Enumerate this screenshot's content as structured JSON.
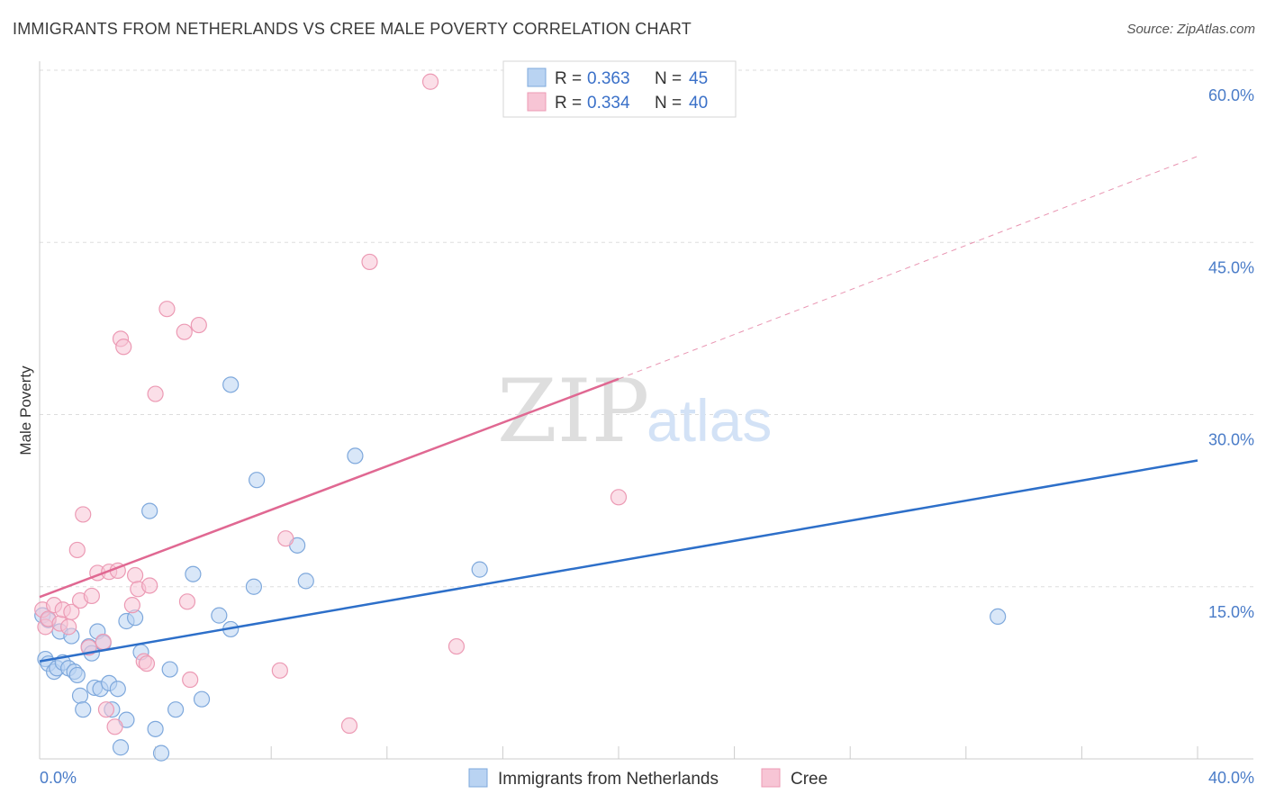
{
  "header": {
    "title": "IMMIGRANTS FROM NETHERLANDS VS CREE MALE POVERTY CORRELATION CHART",
    "source": "Source: ZipAtlas.com"
  },
  "watermark": {
    "zip": "ZIP",
    "atlas": "atlas"
  },
  "colors": {
    "blue_fill": "#b9d3f2",
    "blue_stroke": "#7ea8dc",
    "blue_line": "#2d6fc9",
    "pink_fill": "#f7c5d5",
    "pink_stroke": "#ec9ab4",
    "pink_line": "#e06892",
    "grid": "#dddddd",
    "axis_text": "#4a7cc8"
  },
  "legend": {
    "rows": [
      {
        "r_label": "R = ",
        "r_value": "0.363",
        "n_label": "N = ",
        "n_value": "45",
        "color": "#b9d3f2"
      },
      {
        "r_label": "R = ",
        "r_value": "0.334",
        "n_label": "N = ",
        "n_value": "40",
        "color": "#f7c5d5"
      }
    ]
  },
  "chart_data": {
    "type": "scatter",
    "title": "IMMIGRANTS FROM NETHERLANDS VS CREE MALE POVERTY CORRELATION CHART",
    "xlabel": "",
    "ylabel": "Male Poverty",
    "xlim": [
      0,
      40
    ],
    "ylim": [
      0,
      60
    ],
    "x_ticks": [
      "0.0%",
      "40.0%"
    ],
    "y_ticks": [
      {
        "value": 15,
        "label": "15.0%"
      },
      {
        "value": 30,
        "label": "30.0%"
      },
      {
        "value": 45,
        "label": "45.0%"
      },
      {
        "value": 60,
        "label": "60.0%"
      }
    ],
    "grid": true,
    "legend_position": "top-center",
    "series": [
      {
        "name": "Immigrants from Netherlands",
        "color": "#b9d3f2",
        "trend": {
          "x0": 0,
          "y0": 8.5,
          "x1": 40,
          "y1": 26.0
        },
        "points": [
          [
            0.1,
            12.5
          ],
          [
            0.2,
            8.7
          ],
          [
            0.3,
            12.1
          ],
          [
            0.3,
            8.3
          ],
          [
            0.5,
            7.6
          ],
          [
            0.6,
            7.9
          ],
          [
            0.7,
            11.1
          ],
          [
            0.8,
            8.4
          ],
          [
            1.0,
            7.9
          ],
          [
            1.1,
            10.7
          ],
          [
            1.2,
            7.6
          ],
          [
            1.3,
            7.3
          ],
          [
            1.4,
            5.5
          ],
          [
            1.5,
            4.3
          ],
          [
            1.7,
            9.8
          ],
          [
            1.8,
            9.2
          ],
          [
            1.9,
            6.2
          ],
          [
            2.0,
            11.1
          ],
          [
            2.1,
            6.1
          ],
          [
            2.2,
            10.1
          ],
          [
            2.4,
            6.6
          ],
          [
            2.5,
            4.3
          ],
          [
            2.7,
            6.1
          ],
          [
            2.8,
            1.0
          ],
          [
            3.0,
            3.4
          ],
          [
            3.0,
            12.0
          ],
          [
            3.3,
            12.3
          ],
          [
            3.5,
            9.3
          ],
          [
            3.8,
            21.6
          ],
          [
            4.0,
            2.6
          ],
          [
            4.2,
            0.5
          ],
          [
            4.5,
            7.8
          ],
          [
            4.7,
            4.3
          ],
          [
            5.3,
            16.1
          ],
          [
            5.6,
            5.2
          ],
          [
            6.2,
            12.5
          ],
          [
            6.6,
            11.3
          ],
          [
            6.6,
            32.6
          ],
          [
            7.4,
            15.0
          ],
          [
            7.5,
            24.3
          ],
          [
            8.9,
            18.6
          ],
          [
            9.2,
            15.5
          ],
          [
            10.9,
            26.4
          ],
          [
            15.2,
            16.5
          ],
          [
            33.1,
            12.4
          ]
        ]
      },
      {
        "name": "Cree",
        "color": "#f7c5d5",
        "trend": {
          "x0": 0,
          "y0": 14.1,
          "x1": 20,
          "y1": 33.1
        },
        "trend_dashed": {
          "x0": 20,
          "y0": 33.1,
          "x1": 40,
          "y1": 52.5
        },
        "points": [
          [
            0.1,
            13.0
          ],
          [
            0.2,
            11.5
          ],
          [
            0.3,
            12.2
          ],
          [
            0.5,
            13.4
          ],
          [
            0.7,
            11.8
          ],
          [
            0.8,
            13.0
          ],
          [
            1.0,
            11.5
          ],
          [
            1.1,
            12.8
          ],
          [
            1.3,
            18.2
          ],
          [
            1.4,
            13.8
          ],
          [
            1.5,
            21.3
          ],
          [
            1.7,
            9.7
          ],
          [
            1.8,
            14.2
          ],
          [
            2.0,
            16.2
          ],
          [
            2.2,
            10.2
          ],
          [
            2.3,
            4.3
          ],
          [
            2.4,
            16.3
          ],
          [
            2.6,
            2.8
          ],
          [
            2.7,
            16.4
          ],
          [
            2.8,
            36.6
          ],
          [
            2.9,
            35.9
          ],
          [
            3.2,
            13.4
          ],
          [
            3.3,
            16.0
          ],
          [
            3.4,
            14.8
          ],
          [
            3.6,
            8.5
          ],
          [
            3.7,
            8.3
          ],
          [
            3.8,
            15.1
          ],
          [
            4.0,
            31.8
          ],
          [
            4.4,
            39.2
          ],
          [
            5.0,
            37.2
          ],
          [
            5.1,
            13.7
          ],
          [
            5.2,
            6.9
          ],
          [
            5.5,
            37.8
          ],
          [
            8.3,
            7.7
          ],
          [
            8.5,
            19.2
          ],
          [
            10.7,
            2.9
          ],
          [
            11.4,
            43.3
          ],
          [
            13.5,
            59.0
          ],
          [
            14.4,
            9.8
          ],
          [
            20.0,
            22.8
          ]
        ]
      }
    ]
  }
}
